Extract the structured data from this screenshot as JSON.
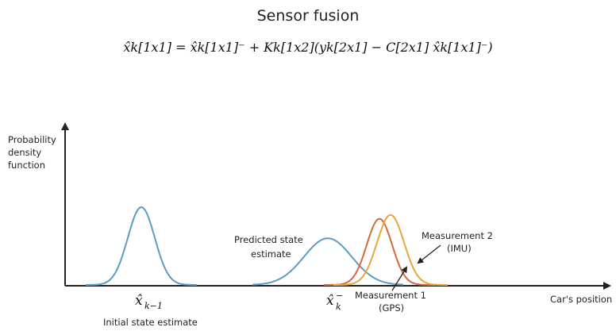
{
  "title": "Sensor fusion",
  "equation": "x̂k[1x1] = x̂k[1x1]⁻ + Kk[1x2](yk[2x1] − C[2x1] x̂k[1x1]⁻)",
  "axes": {
    "y_label_lines": [
      "Probability",
      "density",
      "function"
    ],
    "x_label": "Car's position"
  },
  "annotations": {
    "initial": {
      "symbol": "x̂",
      "subscript": "k−1",
      "label": "Initial state estimate"
    },
    "predicted": {
      "symbol": "x̂",
      "subscript": "k",
      "superscript": "−",
      "label_lines": [
        "Predicted state",
        "estimate"
      ]
    },
    "measurement1": {
      "label_lines": [
        "Measurement 1",
        "(GPS)"
      ]
    },
    "measurement2": {
      "label_lines": [
        "Measurement 2",
        "(IMU)"
      ]
    }
  },
  "colors": {
    "axis": "#222222",
    "initial_curve": "#5b9bc8",
    "predicted_curve": "#5b9bc8",
    "gps_curve": "#d4693a",
    "imu_curve": "#e8a63c"
  },
  "curves": [
    {
      "id": "initial",
      "mean": 0.0,
      "sd": 1.0,
      "peak": 1.0
    },
    {
      "id": "predicted",
      "mean": 1.0,
      "sd": 1.0,
      "peak": 0.6
    },
    {
      "id": "gps",
      "mean": 1.0,
      "sd": 1.0,
      "peak": 0.85
    },
    {
      "id": "imu",
      "mean": 1.0,
      "sd": 1.0,
      "peak": 0.9
    }
  ]
}
